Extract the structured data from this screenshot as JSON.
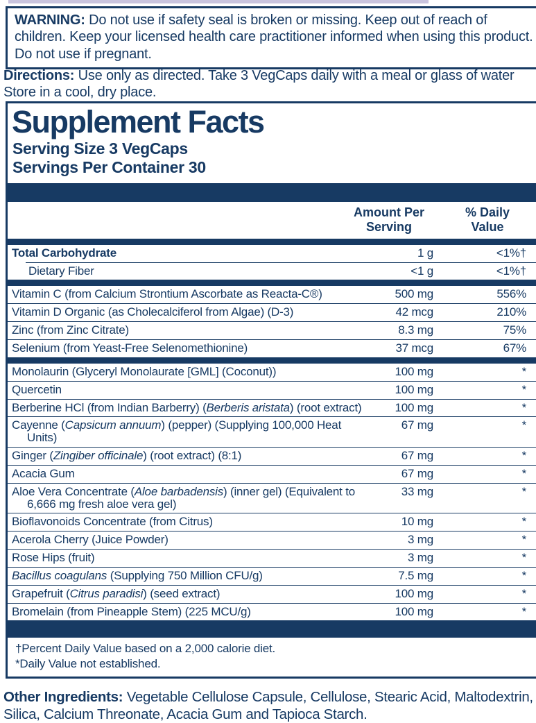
{
  "colors": {
    "navy": "#173a63",
    "lavender": "#c9c4de"
  },
  "warning": {
    "label": "WARNING:",
    "text": " Do not use if safety seal is broken or missing. Keep out of reach of children. Keep your licensed health care practitioner informed when using this product. Do not use if pregnant."
  },
  "directions": {
    "label": "Directions:",
    "line1": " Use only as directed. Take 3 VegCaps daily with a meal or glass of water",
    "line2": "Store in a cool, dry place."
  },
  "panel": {
    "title": "Supplement Facts",
    "serving_size": "Serving Size 3 VegCaps",
    "servings_per_container": "Servings Per Container 30",
    "headers": {
      "amount_line1": "Amount Per",
      "amount_line2": "Serving",
      "dv_line1": "% Daily",
      "dv_line2": "Value"
    },
    "groups": [
      {
        "rows": [
          {
            "bold": true,
            "name": [
              {
                "t": "Total Carbohydrate"
              }
            ],
            "amount": "1 g",
            "dv": "<1%†"
          },
          {
            "indent": true,
            "name": [
              {
                "t": "Dietary Fiber"
              }
            ],
            "amount": "<1 g",
            "dv": "<1%†"
          }
        ]
      },
      {
        "rows": [
          {
            "name": [
              {
                "t": "Vitamin C (from Calcium Strontium Ascorbate as Reacta-C®)"
              }
            ],
            "amount": "500 mg",
            "dv": "556%"
          },
          {
            "name": [
              {
                "t": "Vitamin D Organic (as Cholecalciferol from Algae) (D-3)"
              }
            ],
            "amount": "42 mcg",
            "dv": "210%"
          },
          {
            "name": [
              {
                "t": "Zinc (from Zinc Citrate)"
              }
            ],
            "amount": "8.3 mg",
            "dv": "75%"
          },
          {
            "name": [
              {
                "t": "Selenium (from Yeast-Free Selenomethionine)"
              }
            ],
            "amount": "37 mcg",
            "dv": "67%"
          }
        ]
      },
      {
        "rows": [
          {
            "name": [
              {
                "t": "Monolaurin (Glyceryl Monolaurate [GML] (Coconut))"
              }
            ],
            "amount": "100 mg",
            "dv": "*"
          },
          {
            "name": [
              {
                "t": "Quercetin"
              }
            ],
            "amount": "100 mg",
            "dv": "*"
          },
          {
            "name": [
              {
                "t": "Berberine HCl (from Indian Barberry) ("
              },
              {
                "t": "Berberis aristata",
                "i": true
              },
              {
                "t": ") (root extract)"
              }
            ],
            "amount": "100 mg",
            "dv": "*"
          },
          {
            "name": [
              {
                "t": "Cayenne ("
              },
              {
                "t": "Capsicum annuum",
                "i": true
              },
              {
                "t": ") (pepper) (Supplying 100,000 Heat"
              },
              {
                "brk": true
              },
              {
                "t": "Units)"
              }
            ],
            "amount": "67 mg",
            "dv": "*"
          },
          {
            "name": [
              {
                "t": "Ginger ("
              },
              {
                "t": "Zingiber officinale",
                "i": true
              },
              {
                "t": ") (root extract) (8:1)"
              }
            ],
            "amount": "67 mg",
            "dv": "*"
          },
          {
            "name": [
              {
                "t": "Acacia Gum"
              }
            ],
            "amount": "67 mg",
            "dv": "*"
          },
          {
            "name": [
              {
                "t": "Aloe Vera Concentrate ("
              },
              {
                "t": "Aloe barbadensis",
                "i": true
              },
              {
                "t": ") (inner gel) (Equivalent to"
              },
              {
                "brk": true
              },
              {
                "t": "6,666 mg fresh aloe vera gel)"
              }
            ],
            "amount": "33 mg",
            "dv": "*"
          },
          {
            "name": [
              {
                "t": "Bioflavonoids Concentrate (from Citrus)"
              }
            ],
            "amount": "10 mg",
            "dv": "*"
          },
          {
            "name": [
              {
                "t": "Acerola Cherry (Juice Powder)"
              }
            ],
            "amount": "3 mg",
            "dv": "*"
          },
          {
            "name": [
              {
                "t": "Rose Hips (fruit)"
              }
            ],
            "amount": "3 mg",
            "dv": "*"
          },
          {
            "name": [
              {
                "t": "Bacillus coagulans",
                "i": true
              },
              {
                "t": " (Supplying 750 Million CFU/g)"
              }
            ],
            "amount": "7.5 mg",
            "dv": "*"
          },
          {
            "name": [
              {
                "t": "Grapefruit ("
              },
              {
                "t": "Citrus paradisi",
                "i": true
              },
              {
                "t": ") (seed extract)"
              }
            ],
            "amount": "100 mg",
            "dv": "*"
          },
          {
            "name": [
              {
                "t": "Bromelain (from Pineapple Stem) (225 MCU/g)"
              }
            ],
            "amount": "100 mg",
            "dv": "*"
          }
        ]
      }
    ],
    "footnotes": {
      "dv_note": "†Percent Daily Value based on a 2,000 calorie diet.",
      "star_note": "*Daily Value not established."
    }
  },
  "other_ingredients": {
    "label": "Other Ingredients:",
    "text": " Vegetable Cellulose Capsule, Cellulose, Stearic Acid, Maltodextrin, Silica, Calcium Threonate, Acacia Gum and Tapioca Starch."
  }
}
